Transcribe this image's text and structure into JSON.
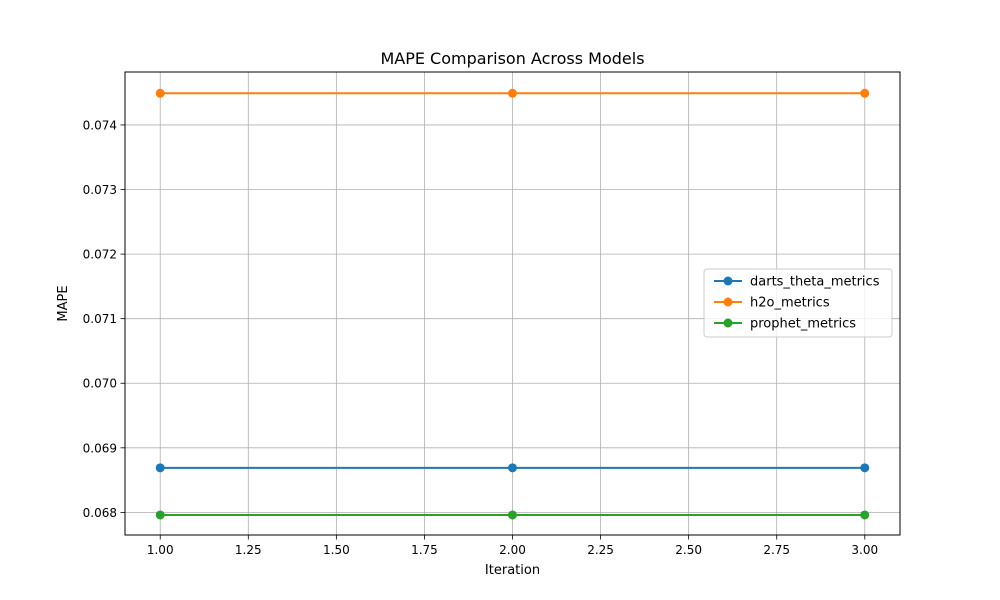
{
  "chart_data": {
    "type": "line",
    "title": "MAPE Comparison Across Models",
    "xlabel": "Iteration",
    "ylabel": "MAPE",
    "x": [
      1.0,
      2.0,
      3.0
    ],
    "xlim": [
      0.9,
      3.1
    ],
    "ylim": [
      0.06765,
      0.07482
    ],
    "xticks": [
      1.0,
      1.25,
      1.5,
      1.75,
      2.0,
      2.25,
      2.5,
      2.75,
      3.0
    ],
    "xtick_labels": [
      "1.00",
      "1.25",
      "1.50",
      "1.75",
      "2.00",
      "2.25",
      "2.50",
      "2.75",
      "3.00"
    ],
    "yticks": [
      0.068,
      0.069,
      0.07,
      0.071,
      0.072,
      0.073,
      0.074
    ],
    "ytick_labels": [
      "0.068",
      "0.069",
      "0.070",
      "0.071",
      "0.072",
      "0.073",
      "0.074"
    ],
    "grid": true,
    "legend_position": "center-right",
    "series": [
      {
        "name": "darts_theta_metrics",
        "color": "#1f77b4",
        "values": [
          0.06869,
          0.06869,
          0.06869
        ]
      },
      {
        "name": "h2o_metrics",
        "color": "#ff7f0e",
        "values": [
          0.07449,
          0.07449,
          0.07449
        ]
      },
      {
        "name": "prophet_metrics",
        "color": "#2ca02c",
        "values": [
          0.06796,
          0.06796,
          0.06796
        ]
      }
    ]
  }
}
